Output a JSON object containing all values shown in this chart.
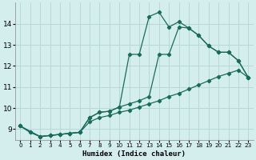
{
  "xlabel": "Humidex (Indice chaleur)",
  "background_color": "#d4eeee",
  "grid_color": "#b8d8d8",
  "line_color": "#1a6b5a",
  "xlim": [
    -0.5,
    23.5
  ],
  "ylim": [
    8.5,
    15.0
  ],
  "yticks": [
    9,
    10,
    11,
    12,
    13,
    14
  ],
  "xticks": [
    0,
    1,
    2,
    3,
    4,
    5,
    6,
    7,
    8,
    9,
    10,
    11,
    12,
    13,
    14,
    15,
    16,
    17,
    18,
    19,
    20,
    21,
    22,
    23
  ],
  "series1_x": [
    0,
    1,
    2,
    3,
    4,
    5,
    6,
    7,
    8,
    9,
    10,
    11,
    12,
    13,
    14,
    15,
    16,
    17,
    18,
    19,
    20,
    21,
    22,
    23
  ],
  "series1_y": [
    9.15,
    8.85,
    8.65,
    8.7,
    8.75,
    8.8,
    8.85,
    9.55,
    9.8,
    9.85,
    10.05,
    12.55,
    12.55,
    14.35,
    14.55,
    13.85,
    14.1,
    13.8,
    13.45,
    12.95,
    12.65,
    12.65,
    12.25,
    11.45
  ],
  "series2_x": [
    0,
    1,
    2,
    3,
    4,
    5,
    6,
    7,
    8,
    9,
    10,
    11,
    12,
    13,
    14,
    15,
    16,
    17,
    18,
    19,
    20,
    21,
    22,
    23
  ],
  "series2_y": [
    9.15,
    8.85,
    8.65,
    8.7,
    8.75,
    8.8,
    8.85,
    9.35,
    9.55,
    9.65,
    9.8,
    9.9,
    10.05,
    10.2,
    10.35,
    10.55,
    10.7,
    10.9,
    11.1,
    11.3,
    11.5,
    11.65,
    11.8,
    11.45
  ],
  "series3_x": [
    0,
    2,
    3,
    4,
    5,
    6,
    7,
    8,
    9,
    10,
    11,
    12,
    13,
    14,
    15,
    16,
    17,
    18,
    19,
    20,
    21,
    22,
    23
  ],
  "series3_y": [
    9.15,
    8.65,
    8.7,
    8.75,
    8.8,
    8.85,
    9.55,
    9.8,
    9.85,
    10.05,
    10.2,
    10.35,
    10.55,
    12.55,
    12.55,
    13.85,
    13.8,
    13.45,
    12.95,
    12.65,
    12.65,
    12.25,
    11.45
  ]
}
